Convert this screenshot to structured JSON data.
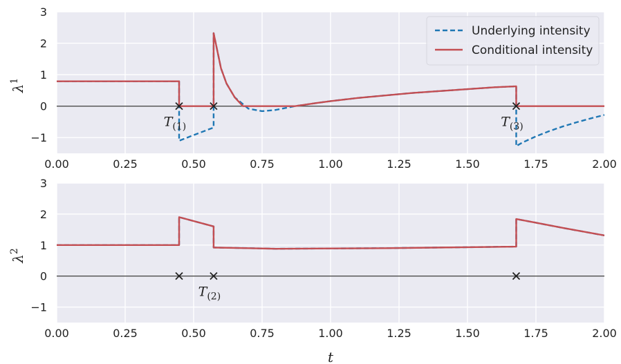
{
  "colors": {
    "plot_bg": "#EAEAF2",
    "grid": "#FFFFFF",
    "underlying": "#1F77B4",
    "conditional": "#C44E52",
    "zero_line": "#4A4A4A",
    "marker": "#222222"
  },
  "chart_data": [
    {
      "type": "line",
      "panel": "top",
      "ylabel": "λ",
      "ylabel_sup": "1",
      "xlabel": "",
      "xlim": [
        0,
        2
      ],
      "ylim": [
        -1.5,
        3
      ],
      "xticks": [
        "0.00",
        "0.25",
        "0.50",
        "0.75",
        "1.00",
        "1.25",
        "1.50",
        "1.75",
        "2.00"
      ],
      "xtick_values": [
        0,
        0.25,
        0.5,
        0.75,
        1.0,
        1.25,
        1.5,
        1.75,
        2.0
      ],
      "yticks": [
        "−1",
        "0",
        "1",
        "2",
        "3"
      ],
      "ytick_values": [
        -1,
        0,
        1,
        2,
        3
      ],
      "grid": true,
      "legend": {
        "placement": "top-right",
        "entries": [
          {
            "label": "Underlying intensity",
            "style": "dashed",
            "color_key": "underlying"
          },
          {
            "label": "Conditional intensity",
            "style": "solid",
            "color_key": "conditional"
          }
        ]
      },
      "series": [
        {
          "name": "Underlying intensity",
          "style": "dashed",
          "x": [
            0,
            0.2,
            0.447,
            0.447,
            0.5,
            0.573,
            0.573,
            0.6,
            0.62,
            0.65,
            0.7,
            0.75,
            0.8,
            0.87,
            0.95,
            1.0,
            1.1,
            1.2,
            1.3,
            1.4,
            1.5,
            1.6,
            1.678,
            1.678,
            1.7,
            1.75,
            1.8,
            1.85,
            1.9,
            1.95,
            2.0
          ],
          "y": [
            0.79,
            0.79,
            0.79,
            -1.1,
            -0.92,
            -0.68,
            2.32,
            1.2,
            0.72,
            0.28,
            -0.08,
            -0.16,
            -0.12,
            0.0,
            0.1,
            0.16,
            0.26,
            0.34,
            0.42,
            0.48,
            0.54,
            0.6,
            0.63,
            -1.27,
            -1.16,
            -0.96,
            -0.79,
            -0.64,
            -0.51,
            -0.39,
            -0.28
          ]
        },
        {
          "name": "Conditional intensity",
          "style": "solid",
          "x": [
            0,
            0.2,
            0.447,
            0.447,
            0.573,
            0.573,
            0.6,
            0.62,
            0.65,
            0.68,
            0.87,
            0.95,
            1.0,
            1.1,
            1.2,
            1.3,
            1.4,
            1.5,
            1.6,
            1.678,
            1.678,
            2.0
          ],
          "y": [
            0.79,
            0.79,
            0.79,
            0.0,
            0.0,
            2.32,
            1.2,
            0.72,
            0.28,
            0.0,
            0.0,
            0.1,
            0.16,
            0.26,
            0.34,
            0.42,
            0.48,
            0.54,
            0.6,
            0.63,
            0.0,
            0.0
          ]
        }
      ],
      "events": [
        {
          "x": 0.447,
          "label": "T",
          "sub": "(1)"
        },
        {
          "x": 0.573,
          "label": "",
          "sub": ""
        },
        {
          "x": 1.678,
          "label": "T",
          "sub": "(3)"
        }
      ]
    },
    {
      "type": "line",
      "panel": "bottom",
      "ylabel": "λ",
      "ylabel_sup": "2",
      "xlabel": "t",
      "xlim": [
        0,
        2
      ],
      "ylim": [
        -1.5,
        3
      ],
      "xticks": [
        "0.00",
        "0.25",
        "0.50",
        "0.75",
        "1.00",
        "1.25",
        "1.50",
        "1.75",
        "2.00"
      ],
      "xtick_values": [
        0,
        0.25,
        0.5,
        0.75,
        1.0,
        1.25,
        1.5,
        1.75,
        2.0
      ],
      "yticks": [
        "−1",
        "0",
        "1",
        "2",
        "3"
      ],
      "ytick_values": [
        -1,
        0,
        1,
        2,
        3
      ],
      "grid": true,
      "series": [
        {
          "name": "Underlying intensity",
          "style": "dashed",
          "x": [
            0,
            0.447,
            0.447,
            0.573,
            0.573,
            0.7,
            0.8,
            1.0,
            1.2,
            1.5,
            1.678,
            1.678,
            1.75,
            1.85,
            2.0
          ],
          "y": [
            1.0,
            1.0,
            1.9,
            1.6,
            0.92,
            0.9,
            0.88,
            0.89,
            0.9,
            0.93,
            0.95,
            1.84,
            1.72,
            1.55,
            1.31
          ]
        },
        {
          "name": "Conditional intensity",
          "style": "solid",
          "x": [
            0,
            0.447,
            0.447,
            0.573,
            0.573,
            0.7,
            0.8,
            1.0,
            1.2,
            1.5,
            1.678,
            1.678,
            1.75,
            1.85,
            2.0
          ],
          "y": [
            1.0,
            1.0,
            1.9,
            1.6,
            0.92,
            0.9,
            0.88,
            0.89,
            0.9,
            0.93,
            0.95,
            1.84,
            1.72,
            1.55,
            1.31
          ]
        }
      ],
      "events": [
        {
          "x": 0.447,
          "label": "",
          "sub": ""
        },
        {
          "x": 0.573,
          "label": "T",
          "sub": "(2)"
        },
        {
          "x": 1.678,
          "label": "",
          "sub": ""
        }
      ]
    }
  ]
}
